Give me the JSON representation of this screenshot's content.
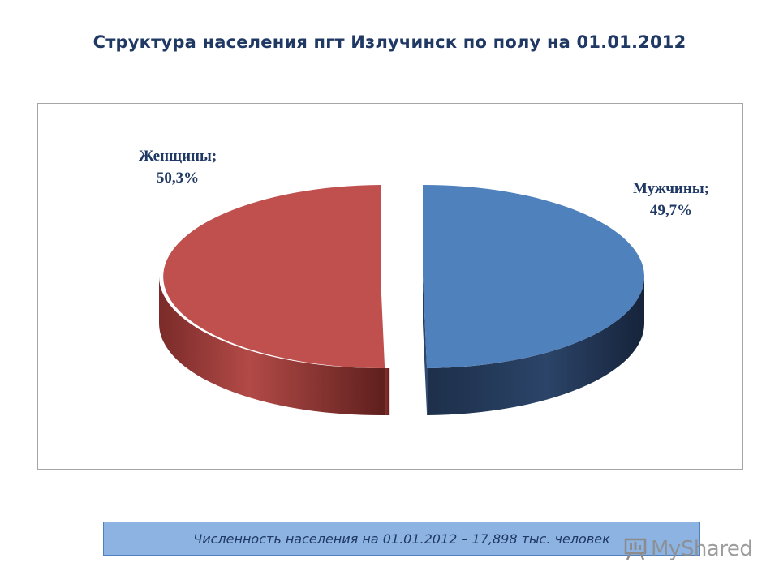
{
  "slide": {
    "title": "Структура населения пгт Излучинск по полу на 01.01.2012",
    "footer": "Численность населения  на 01.01.2012 – 17,898 тыс. человек"
  },
  "watermark": {
    "text": "MyShared",
    "icon": "presentation-board-icon"
  },
  "chart_data": {
    "type": "pie",
    "style": "3d-exploded",
    "slices": [
      {
        "name": "Мужчины",
        "value": 49.7,
        "label_line1": "Мужчины;",
        "label_line2": "49,7%",
        "color": "#4f81bd"
      },
      {
        "name": "Женщины",
        "value": 50.3,
        "label_line1": "Женщины;",
        "label_line2": "50,3%",
        "color": "#c0504d"
      }
    ],
    "legend": "none",
    "unit": "%"
  }
}
